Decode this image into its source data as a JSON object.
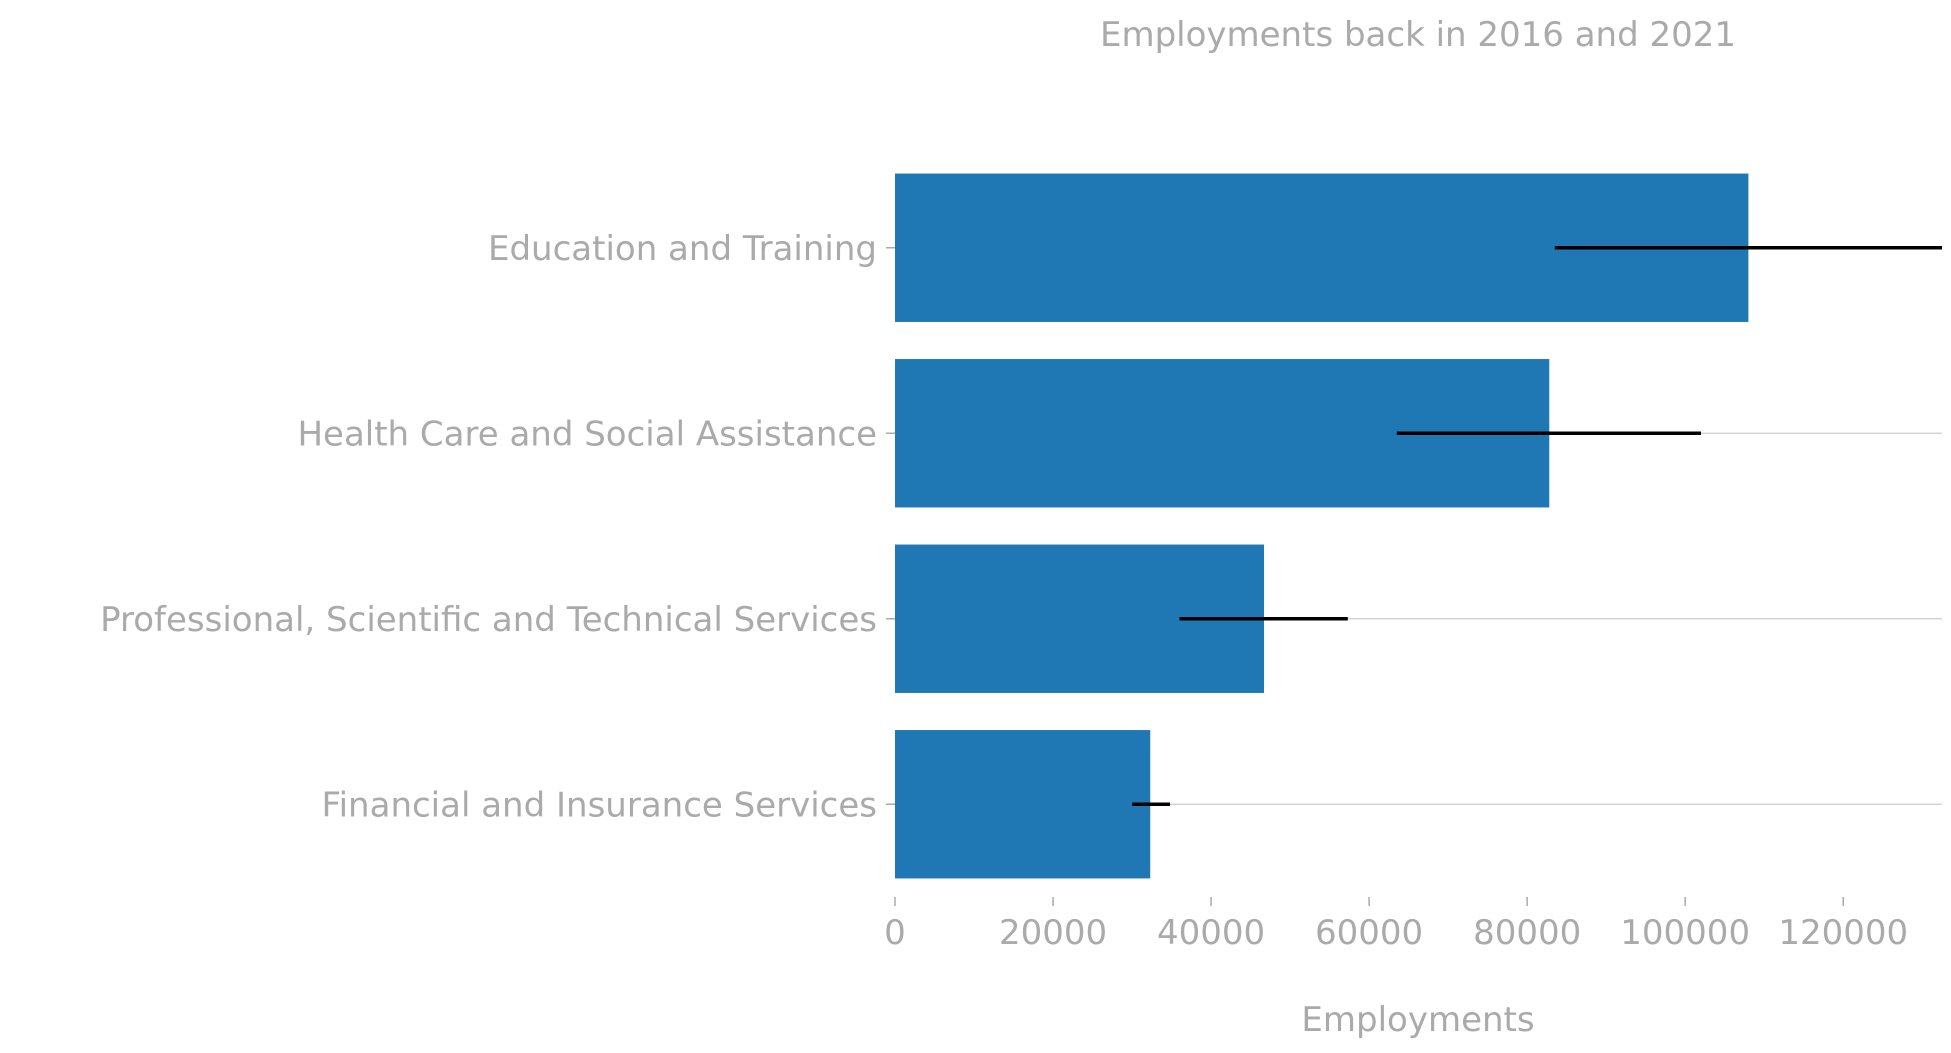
{
  "chart_data": {
    "type": "bar",
    "orientation": "horizontal",
    "title": "Employments back in 2016 and 2021",
    "xlabel": "Employments",
    "ylabel": "",
    "categories": [
      "Education and Training",
      "Health Care and Social Assistance",
      "Professional, Scientific and Technical Services",
      "Financial and Insurance Services"
    ],
    "values": [
      108000,
      82800,
      46700,
      32300
    ],
    "error_bars": [
      {
        "low": 83500,
        "high": 132500
      },
      {
        "low": 63500,
        "high": 102000
      },
      {
        "low": 36000,
        "high": 57300
      },
      {
        "low": 30000,
        "high": 34800
      }
    ],
    "xlim": [
      0,
      132500
    ],
    "xticks": [
      0,
      20000,
      40000,
      60000,
      80000,
      100000,
      120000
    ],
    "tick_labels": [
      "0",
      "20000",
      "40000",
      "60000",
      "80000",
      "100000",
      "120000"
    ],
    "grid": "horizontal gridlines at categories",
    "legend": "none",
    "colors": {
      "bar": "#1f77b4",
      "error_bar": "#000000",
      "text": "#aaaaaa",
      "grid": "#cccccc"
    }
  }
}
